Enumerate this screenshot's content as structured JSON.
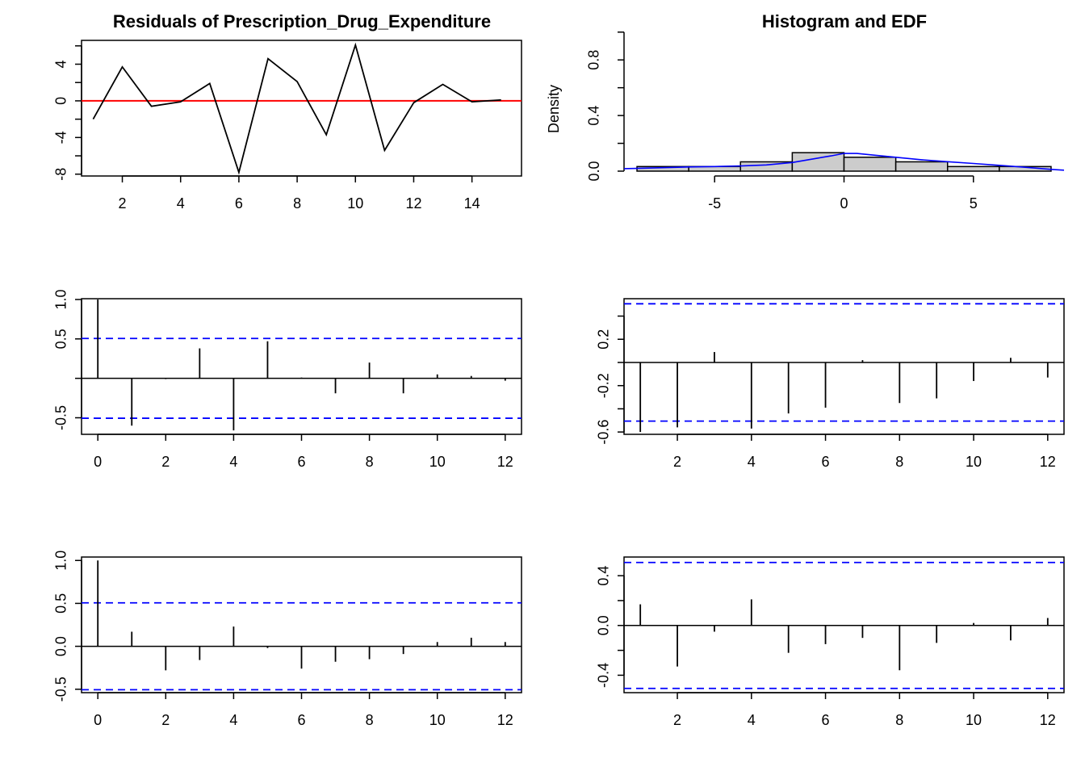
{
  "colors": {
    "series": "#000000",
    "zero_line": "#ff0000",
    "conf_band": "#0000ff",
    "density": "#0000ff",
    "hist_fill": "#cccccc"
  },
  "chart_data": [
    {
      "id": "residuals",
      "type": "line",
      "title": "Residuals of Prescription_Drug_Expenditure",
      "xlabel": "",
      "ylabel": "",
      "x": [
        1,
        2,
        3,
        4,
        5,
        6,
        7,
        8,
        9,
        10,
        11,
        12,
        13,
        14,
        15
      ],
      "values": [
        -2.0,
        3.7,
        -0.6,
        -0.1,
        1.9,
        -7.8,
        4.6,
        2.1,
        -3.7,
        6.1,
        -5.4,
        -0.2,
        1.8,
        -0.1,
        0.1
      ],
      "xlim": [
        0.6,
        15.7
      ],
      "ylim": [
        -8.2,
        6.6
      ],
      "xticks": [
        2,
        4,
        6,
        8,
        10,
        12,
        14
      ],
      "xtick_labels": [
        "2",
        "4",
        "6",
        "8",
        "10",
        "12",
        "14"
      ],
      "yticks": [
        -8,
        -6,
        -4,
        -2,
        0,
        2,
        4,
        6
      ],
      "ytick_labels": [
        "-8",
        "",
        "-4",
        "",
        "0",
        "",
        "4",
        ""
      ],
      "hline": 0
    },
    {
      "id": "histogram",
      "type": "bar",
      "title": "Histogram and EDF",
      "xlabel": "",
      "ylabel": "Density",
      "bins": [
        [
          -8,
          -6
        ],
        [
          -6,
          -4
        ],
        [
          -4,
          -2
        ],
        [
          -2,
          0
        ],
        [
          0,
          2
        ],
        [
          2,
          4
        ],
        [
          4,
          6
        ],
        [
          6,
          8
        ]
      ],
      "values": [
        0.033,
        0.033,
        0.067,
        0.133,
        0.1,
        0.067,
        0.033,
        0.033
      ],
      "density_x": [
        -8.5,
        -8,
        -7,
        -6,
        -5,
        -4,
        -3,
        -2,
        -1,
        -0.5,
        0,
        0.5,
        1,
        2,
        3,
        4,
        5,
        6,
        7,
        8,
        8.5
      ],
      "density_y": [
        0.018,
        0.02,
        0.025,
        0.03,
        0.033,
        0.037,
        0.045,
        0.062,
        0.094,
        0.11,
        0.128,
        0.127,
        0.118,
        0.1,
        0.082,
        0.068,
        0.055,
        0.042,
        0.028,
        0.013,
        0.007
      ],
      "xlim": [
        -8.5,
        8.5
      ],
      "ylim": [
        0.0,
        0.9
      ],
      "xticks": [
        -5,
        0,
        5
      ],
      "xtick_labels": [
        "-5",
        "0",
        "5"
      ],
      "yticks": [
        0.0,
        0.2,
        0.4,
        0.6,
        0.8,
        1.0
      ],
      "ytick_labels": [
        "0.0",
        "",
        "0.4",
        "",
        "0.8",
        ""
      ]
    },
    {
      "id": "acf",
      "type": "bar",
      "title": "",
      "xlabel": "",
      "ylabel": "",
      "x": [
        0,
        1,
        2,
        3,
        4,
        5,
        6,
        7,
        8,
        9,
        10,
        11,
        12
      ],
      "values": [
        1.0,
        -0.6,
        -0.01,
        0.38,
        -0.66,
        0.47,
        0.01,
        -0.19,
        0.2,
        -0.19,
        0.05,
        0.03,
        -0.03
      ],
      "conf": 0.506,
      "xlim": [
        -0.48,
        12.48
      ],
      "ylim": [
        -0.71,
        1.01
      ],
      "xticks": [
        0,
        2,
        4,
        6,
        8,
        10,
        12
      ],
      "xtick_labels": [
        "0",
        "2",
        "4",
        "6",
        "8",
        "10",
        "12"
      ],
      "yticks": [
        -0.5,
        0,
        0.5,
        1.0
      ],
      "ytick_labels": [
        "-0.5",
        "",
        "0.5",
        "1.0"
      ]
    },
    {
      "id": "pacf",
      "type": "bar",
      "title": "",
      "xlabel": "",
      "ylabel": "",
      "x": [
        1,
        2,
        3,
        4,
        5,
        6,
        7,
        8,
        9,
        10,
        11,
        12
      ],
      "values": [
        -0.6,
        -0.56,
        0.09,
        -0.57,
        -0.44,
        -0.39,
        0.02,
        -0.35,
        -0.31,
        -0.16,
        0.04,
        -0.13
      ],
      "conf": 0.506,
      "xlim": [
        0.56,
        12.44
      ],
      "ylim": [
        -0.62,
        0.55
      ],
      "xticks": [
        2,
        4,
        6,
        8,
        10,
        12
      ],
      "xtick_labels": [
        "2",
        "4",
        "6",
        "8",
        "10",
        "12"
      ],
      "yticks": [
        -0.6,
        -0.4,
        -0.2,
        0,
        0.2,
        0.4
      ],
      "ytick_labels": [
        "-0.6",
        "",
        "-0.2",
        "",
        "0.2",
        ""
      ]
    },
    {
      "id": "acf_squared",
      "type": "bar",
      "title": "",
      "xlabel": "",
      "ylabel": "",
      "x": [
        0,
        1,
        2,
        3,
        4,
        5,
        6,
        7,
        8,
        9,
        10,
        11,
        12
      ],
      "values": [
        1.0,
        0.17,
        -0.28,
        -0.16,
        0.23,
        -0.02,
        -0.26,
        -0.18,
        -0.15,
        -0.09,
        0.05,
        0.1,
        0.05
      ],
      "conf": 0.506,
      "xlim": [
        -0.48,
        12.48
      ],
      "ylim": [
        -0.54,
        1.04
      ],
      "xticks": [
        0,
        2,
        4,
        6,
        8,
        10,
        12
      ],
      "xtick_labels": [
        "0",
        "2",
        "4",
        "6",
        "8",
        "10",
        "12"
      ],
      "yticks": [
        -0.5,
        0,
        0.5,
        1.0
      ],
      "ytick_labels": [
        "-0.5",
        "0.0",
        "0.5",
        "1.0"
      ]
    },
    {
      "id": "pacf_squared",
      "type": "bar",
      "title": "",
      "xlabel": "",
      "ylabel": "",
      "x": [
        1,
        2,
        3,
        4,
        5,
        6,
        7,
        8,
        9,
        10,
        11,
        12
      ],
      "values": [
        0.17,
        -0.33,
        -0.05,
        0.21,
        -0.22,
        -0.15,
        -0.1,
        -0.36,
        -0.14,
        0.02,
        -0.12,
        0.06
      ],
      "conf": 0.506,
      "xlim": [
        0.56,
        12.44
      ],
      "ylim": [
        -0.54,
        0.55
      ],
      "xticks": [
        2,
        4,
        6,
        8,
        10,
        12
      ],
      "xtick_labels": [
        "2",
        "4",
        "6",
        "8",
        "10",
        "12"
      ],
      "yticks": [
        -0.4,
        -0.2,
        0,
        0.2,
        0.4
      ],
      "ytick_labels": [
        "-0.4",
        "",
        "0.0",
        "",
        "0.4"
      ]
    }
  ]
}
